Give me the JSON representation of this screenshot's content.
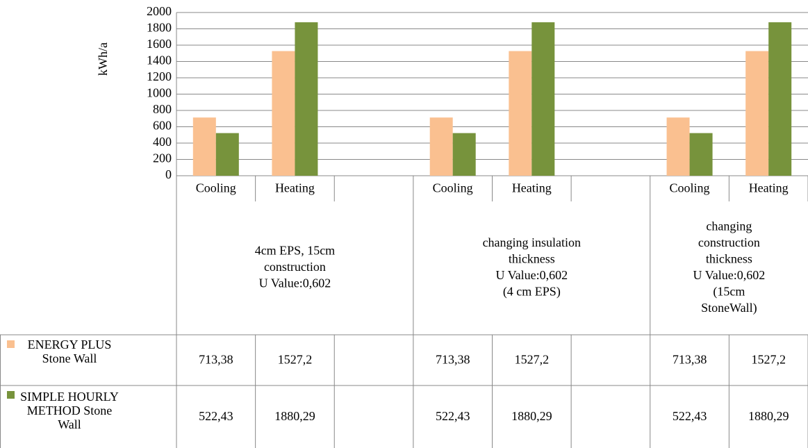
{
  "chart_data": {
    "type": "bar",
    "y_label": "kWh/a",
    "categories": [
      "Cooling",
      "Heating",
      null,
      "Cooling",
      "Heating",
      null,
      "Cooling",
      "Heating"
    ],
    "groups": [
      [
        "4cm EPS, 15cm",
        "construction",
        "U Value:0,602"
      ],
      [
        "changing insulation",
        "thickness",
        "U Value:0,602",
        "(4 cm EPS)"
      ],
      [
        "changing",
        "construction",
        "thickness",
        "U Value:0,602",
        "(15cm",
        "StoneWall)"
      ]
    ],
    "series": [
      {
        "name": "ENERGY PLUS Stone Wall",
        "color": "#fac090",
        "values": [
          713.38,
          1527.2,
          null,
          713.38,
          1527.2,
          null,
          713.38,
          1527.2
        ],
        "value_labels": [
          "713,38",
          "1527,2",
          null,
          "713,38",
          "1527,2",
          null,
          "713,38",
          "1527,2"
        ]
      },
      {
        "name": "SIMPLE HOURLY METHOD Stone Wall",
        "color": "#77933c",
        "values": [
          522.43,
          1880.29,
          null,
          522.43,
          1880.29,
          null,
          522.43,
          1880.29
        ],
        "value_labels": [
          "522,43",
          "1880,29",
          null,
          "522,43",
          "1880,29",
          null,
          "522,43",
          "1880,29"
        ]
      }
    ],
    "ylim": [
      0,
      2000
    ],
    "yticks": [
      0,
      200,
      400,
      600,
      800,
      1000,
      1200,
      1400,
      1600,
      1800,
      2000
    ],
    "grid": true
  }
}
